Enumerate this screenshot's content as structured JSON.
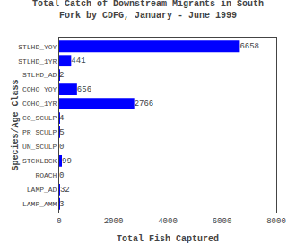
{
  "chart_data": {
    "type": "bar",
    "orientation": "horizontal",
    "title": "Total Catch of Downstream Migrants in South\nFork by CDFG, January - June 1999",
    "xlabel": "Total Fish Captured",
    "ylabel": "Species/Age Class",
    "categories": [
      "STLHD_YOY",
      "STLHD_1YR",
      "STLHD_AD",
      "COHO_YOY",
      "COHO_1YR",
      "CO_SCULP",
      "PR_SCULP",
      "UN_SCULP",
      "STCKLBCK",
      "ROACH",
      "LAMP_AD",
      "LAMP_AMM"
    ],
    "values": [
      6658,
      441,
      2,
      656,
      2766,
      4,
      5,
      0,
      99,
      0,
      32,
      3
    ],
    "color": "#0000FF",
    "xlim": [
      0,
      8000
    ],
    "xticks": [
      0,
      2000,
      4000,
      6000,
      8000
    ],
    "data_labels": true,
    "grid": false
  }
}
